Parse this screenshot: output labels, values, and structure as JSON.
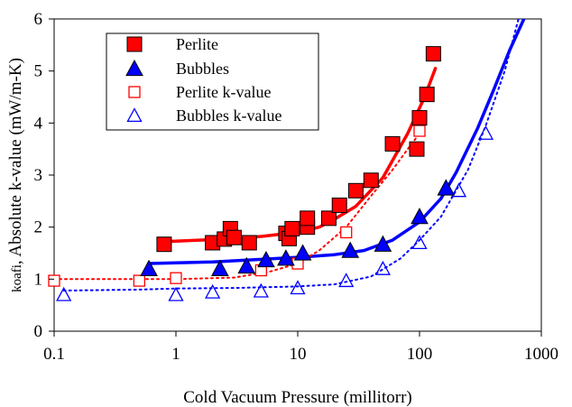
{
  "chart_data": {
    "type": "scatter",
    "xlabel": "Cold Vacuum Pressure (millitorr)",
    "ylabel_sub": "koafi",
    "ylabel_main": ", Absolute k-value (mW/m-K)",
    "xscale": "log",
    "xlim": [
      0.1,
      1000
    ],
    "ylim": [
      0,
      6
    ],
    "x_ticks": [
      0.1,
      1,
      10,
      100,
      1000
    ],
    "x_tick_labels": [
      "0.1",
      "1",
      "10",
      "100",
      "1000"
    ],
    "y_ticks": [
      0,
      1,
      2,
      3,
      4,
      5,
      6
    ],
    "y_tick_labels": [
      "0",
      "1",
      "2",
      "3",
      "4",
      "5",
      "6"
    ],
    "grid": false,
    "legend_position": "top-left",
    "series": [
      {
        "name": "Perlite",
        "marker": "square-filled",
        "color": "#ff0000",
        "edge": "#000000",
        "points": [
          [
            0.8,
            1.67
          ],
          [
            2,
            1.7
          ],
          [
            2.5,
            1.77
          ],
          [
            2.8,
            1.97
          ],
          [
            3,
            1.8
          ],
          [
            4,
            1.7
          ],
          [
            8,
            1.88
          ],
          [
            8.5,
            1.78
          ],
          [
            9,
            1.97
          ],
          [
            12,
            2.0
          ],
          [
            12,
            2.17
          ],
          [
            18,
            2.17
          ],
          [
            22,
            2.42
          ],
          [
            30,
            2.7
          ],
          [
            40,
            2.9
          ],
          [
            60,
            3.6
          ],
          [
            95,
            3.5
          ],
          [
            100,
            4.1
          ],
          [
            115,
            4.55
          ],
          [
            130,
            5.33
          ]
        ]
      },
      {
        "name": "Bubbles",
        "marker": "triangle-filled",
        "color": "#0000ff",
        "edge": "#000000",
        "points": [
          [
            0.6,
            1.2
          ],
          [
            2.3,
            1.2
          ],
          [
            3.8,
            1.25
          ],
          [
            5.5,
            1.37
          ],
          [
            8,
            1.4
          ],
          [
            11,
            1.5
          ],
          [
            27,
            1.55
          ],
          [
            50,
            1.67
          ],
          [
            100,
            2.2
          ],
          [
            165,
            2.75
          ]
        ]
      },
      {
        "name": "Perlite k-value",
        "marker": "square-open",
        "color": "#ff0000",
        "points": [
          [
            0.1,
            0.97
          ],
          [
            0.5,
            0.97
          ],
          [
            1,
            1.02
          ],
          [
            5,
            1.17
          ],
          [
            10,
            1.3
          ],
          [
            25,
            1.9
          ],
          [
            100,
            3.85
          ]
        ]
      },
      {
        "name": "Bubbles k-value",
        "marker": "triangle-open",
        "color": "#0000ff",
        "points": [
          [
            0.12,
            0.7
          ],
          [
            1,
            0.7
          ],
          [
            2,
            0.75
          ],
          [
            5,
            0.77
          ],
          [
            10,
            0.83
          ],
          [
            25,
            0.97
          ],
          [
            50,
            1.2
          ],
          [
            100,
            1.7
          ],
          [
            210,
            2.7
          ],
          [
            350,
            3.8
          ]
        ]
      }
    ],
    "curves": [
      {
        "series": "Perlite",
        "style": "solid",
        "color": "#ff0000",
        "points": [
          [
            0.8,
            1.72
          ],
          [
            2,
            1.76
          ],
          [
            5,
            1.82
          ],
          [
            10,
            1.9
          ],
          [
            15,
            2.0
          ],
          [
            20,
            2.15
          ],
          [
            30,
            2.4
          ],
          [
            50,
            2.95
          ],
          [
            80,
            3.8
          ],
          [
            110,
            4.5
          ],
          [
            135,
            5.05
          ]
        ]
      },
      {
        "series": "Bubbles",
        "style": "solid",
        "color": "#0000ff",
        "points": [
          [
            0.6,
            1.3
          ],
          [
            2,
            1.33
          ],
          [
            5,
            1.38
          ],
          [
            10,
            1.42
          ],
          [
            20,
            1.47
          ],
          [
            35,
            1.55
          ],
          [
            60,
            1.75
          ],
          [
            100,
            2.1
          ],
          [
            150,
            2.55
          ],
          [
            200,
            3.05
          ],
          [
            300,
            3.9
          ],
          [
            400,
            4.6
          ],
          [
            550,
            5.4
          ],
          [
            720,
            6.0
          ]
        ]
      },
      {
        "series": "Perlite k-value",
        "style": "dotted",
        "color": "#ff0000",
        "points": [
          [
            0.1,
            1.0
          ],
          [
            0.5,
            1.0
          ],
          [
            1,
            1.0
          ],
          [
            3,
            1.03
          ],
          [
            6,
            1.15
          ],
          [
            10,
            1.3
          ],
          [
            15,
            1.55
          ],
          [
            25,
            2.0
          ],
          [
            40,
            2.6
          ],
          [
            60,
            3.1
          ],
          [
            80,
            3.5
          ],
          [
            100,
            3.8
          ]
        ]
      },
      {
        "series": "Bubbles k-value",
        "style": "dotted",
        "color": "#0000ff",
        "points": [
          [
            0.12,
            0.78
          ],
          [
            0.5,
            0.8
          ],
          [
            1,
            0.82
          ],
          [
            3,
            0.83
          ],
          [
            10,
            0.86
          ],
          [
            20,
            0.9
          ],
          [
            40,
            1.05
          ],
          [
            70,
            1.4
          ],
          [
            100,
            1.75
          ],
          [
            150,
            2.2
          ],
          [
            250,
            3.1
          ],
          [
            350,
            3.95
          ],
          [
            500,
            5.0
          ],
          [
            650,
            6.0
          ]
        ]
      }
    ]
  }
}
